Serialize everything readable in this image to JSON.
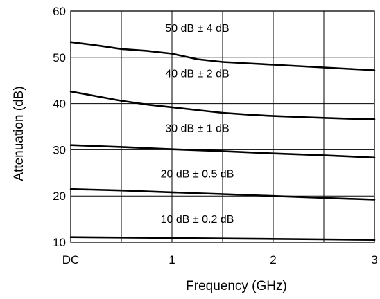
{
  "chart_data": {
    "type": "line",
    "xlabel": "Frequency (GHz)",
    "ylabel": "Attenuation (dB)",
    "xlim": [
      0,
      3
    ],
    "ylim": [
      10,
      60
    ],
    "xticks": [
      {
        "value": 0,
        "label": "DC"
      },
      {
        "value": 1,
        "label": "1"
      },
      {
        "value": 2,
        "label": "2"
      },
      {
        "value": 3,
        "label": "3"
      }
    ],
    "xgrid": [
      0.5,
      1,
      1.5,
      2,
      2.5
    ],
    "yticks": [
      10,
      20,
      30,
      40,
      50,
      60
    ],
    "ygrid": [
      20,
      30,
      40,
      50
    ],
    "grid": true,
    "series": [
      {
        "name": "50 dB ± 4 dB",
        "x": [
          0,
          0.25,
          0.5,
          0.75,
          1,
          1.25,
          1.5,
          1.75,
          2,
          2.25,
          2.5,
          2.75,
          3
        ],
        "y": [
          53.3,
          52.6,
          51.8,
          51.4,
          50.8,
          49.6,
          49.0,
          48.7,
          48.4,
          48.1,
          47.8,
          47.5,
          47.2
        ]
      },
      {
        "name": "40 dB ± 2 dB",
        "x": [
          0,
          0.25,
          0.5,
          0.75,
          1,
          1.25,
          1.5,
          1.75,
          2,
          2.25,
          2.5,
          2.75,
          3
        ],
        "y": [
          42.6,
          41.6,
          40.6,
          39.8,
          39.2,
          38.6,
          38.0,
          37.6,
          37.3,
          37.1,
          36.9,
          36.7,
          36.6
        ]
      },
      {
        "name": "30 dB ± 1 dB",
        "x": [
          0,
          0.5,
          1,
          1.5,
          2,
          2.5,
          3
        ],
        "y": [
          31.0,
          30.6,
          30.1,
          29.7,
          29.2,
          28.8,
          28.3
        ]
      },
      {
        "name": "20 dB ± 0.5 dB",
        "x": [
          0,
          0.5,
          1,
          1.5,
          2,
          2.5,
          3
        ],
        "y": [
          21.5,
          21.2,
          20.8,
          20.4,
          20.0,
          19.6,
          19.2
        ]
      },
      {
        "name": "10 dB ± 0.2 dB",
        "x": [
          0,
          0.5,
          1,
          1.5,
          2,
          2.5,
          3
        ],
        "y": [
          11.1,
          11.0,
          10.9,
          10.8,
          10.7,
          10.6,
          10.5
        ]
      }
    ],
    "annotations": [
      {
        "text": "50 dB ± 4 dB",
        "x": 1.25,
        "y": 55.5
      },
      {
        "text": "40 dB ± 2 dB",
        "x": 1.25,
        "y": 45.7
      },
      {
        "text": "30 dB ± 1 dB",
        "x": 1.25,
        "y": 33.9
      },
      {
        "text": "20 dB ± 0.5 dB",
        "x": 1.25,
        "y": 24.0
      },
      {
        "text": "10 dB ± 0.2 dB",
        "x": 1.25,
        "y": 14.2
      }
    ]
  }
}
